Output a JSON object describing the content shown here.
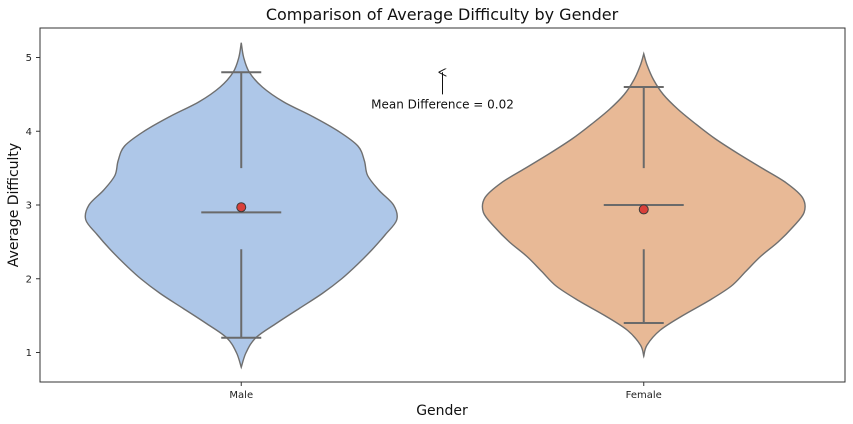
{
  "chart_data": {
    "type": "violin",
    "title": "Comparison of Average Difficulty by Gender",
    "xlabel": "Gender",
    "ylabel": "Average Difficulty",
    "categories": [
      "Male",
      "Female"
    ],
    "ylim": [
      0.6,
      5.4
    ],
    "yticks": [
      1,
      2,
      3,
      4,
      5
    ],
    "grid": false,
    "colors": [
      "#aec7e8",
      "#e8b996"
    ],
    "edge_color": "#6f6f6f",
    "mean_marker_color": "#d9403a",
    "groups": [
      {
        "name": "Male",
        "min": 1.2,
        "q1": 2.4,
        "median": 2.9,
        "q3": 3.5,
        "max": 4.8,
        "mean": 2.97,
        "density": [
          [
            0.8,
            0.0
          ],
          [
            1.0,
            0.03
          ],
          [
            1.2,
            0.09
          ],
          [
            1.4,
            0.22
          ],
          [
            1.6,
            0.36
          ],
          [
            1.8,
            0.5
          ],
          [
            2.0,
            0.62
          ],
          [
            2.2,
            0.72
          ],
          [
            2.4,
            0.81
          ],
          [
            2.6,
            0.89
          ],
          [
            2.8,
            0.96
          ],
          [
            3.0,
            0.94
          ],
          [
            3.2,
            0.85
          ],
          [
            3.4,
            0.78
          ],
          [
            3.6,
            0.76
          ],
          [
            3.8,
            0.72
          ],
          [
            4.0,
            0.6
          ],
          [
            4.2,
            0.44
          ],
          [
            4.4,
            0.26
          ],
          [
            4.6,
            0.13
          ],
          [
            4.8,
            0.05
          ],
          [
            5.0,
            0.015
          ],
          [
            5.2,
            0.0
          ]
        ]
      },
      {
        "name": "Female",
        "min": 1.4,
        "q1": 2.4,
        "median": 3.0,
        "q3": 3.5,
        "max": 4.6,
        "mean": 2.94,
        "density": [
          [
            0.95,
            0.0
          ],
          [
            1.1,
            0.02
          ],
          [
            1.3,
            0.1
          ],
          [
            1.5,
            0.24
          ],
          [
            1.7,
            0.4
          ],
          [
            1.9,
            0.54
          ],
          [
            2.1,
            0.63
          ],
          [
            2.3,
            0.72
          ],
          [
            2.5,
            0.83
          ],
          [
            2.7,
            0.92
          ],
          [
            2.9,
            0.99
          ],
          [
            3.1,
            0.98
          ],
          [
            3.3,
            0.88
          ],
          [
            3.5,
            0.73
          ],
          [
            3.7,
            0.58
          ],
          [
            3.9,
            0.44
          ],
          [
            4.1,
            0.32
          ],
          [
            4.3,
            0.21
          ],
          [
            4.5,
            0.12
          ],
          [
            4.7,
            0.06
          ],
          [
            4.9,
            0.02
          ],
          [
            5.05,
            0.0
          ]
        ]
      }
    ],
    "annotation": {
      "text": "Mean Difference = 0.02",
      "arrow_from": [
        0.5,
        4.5
      ],
      "arrow_to": [
        0.5,
        4.8
      ]
    }
  }
}
